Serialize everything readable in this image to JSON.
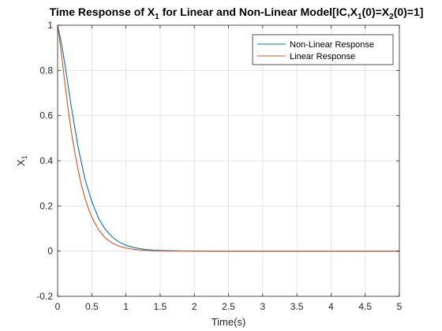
{
  "chart_data": {
    "type": "line",
    "title_parts": [
      {
        "text": "Time Response of X",
        "sub": false
      },
      {
        "text": "1",
        "sub": true
      },
      {
        "text": " for Linear and Non-Linear Model[IC,X",
        "sub": false
      },
      {
        "text": "1",
        "sub": true
      },
      {
        "text": "(0)=X",
        "sub": false
      },
      {
        "text": "2",
        "sub": true
      },
      {
        "text": "(0)=1]",
        "sub": false
      }
    ],
    "xlabel": "Time(s)",
    "ylabel_main": "X",
    "ylabel_sub": "1",
    "xlim": [
      0,
      5
    ],
    "ylim": [
      -0.2,
      1
    ],
    "xticks": [
      0,
      0.5,
      1,
      1.5,
      2,
      2.5,
      3,
      3.5,
      4,
      4.5,
      5
    ],
    "xtick_labels": [
      "0",
      "0.5",
      "1",
      "1.5",
      "2",
      "2.5",
      "3",
      "3.5",
      "4",
      "4.5",
      "5"
    ],
    "yticks": [
      -0.2,
      0,
      0.2,
      0.4,
      0.6,
      0.8,
      1
    ],
    "ytick_labels": [
      "-0.2",
      "0",
      "0.2",
      "0.4",
      "0.6",
      "0.8",
      "1"
    ],
    "grid": true,
    "legend_position": "top-right",
    "series": [
      {
        "name": "Non-Linear Response",
        "color": "#0072BD",
        "x": [
          0,
          0.05,
          0.1,
          0.15,
          0.2,
          0.25,
          0.3,
          0.35,
          0.4,
          0.45,
          0.5,
          0.6,
          0.7,
          0.8,
          0.9,
          1.0,
          1.1,
          1.2,
          1.3,
          1.4,
          1.5,
          1.6,
          1.8,
          2.0,
          2.5,
          3.0,
          3.5,
          4.0,
          4.5,
          5.0
        ],
        "y": [
          1.0,
          0.93,
          0.84,
          0.74,
          0.64,
          0.55,
          0.46,
          0.39,
          0.32,
          0.27,
          0.22,
          0.145,
          0.095,
          0.062,
          0.04,
          0.026,
          0.017,
          0.011,
          0.007,
          0.0045,
          0.003,
          0.002,
          0.001,
          0.0005,
          0.0001,
          0.0,
          0.0,
          0.0,
          0.0,
          0.0
        ]
      },
      {
        "name": "Linear Response",
        "color": "#D95319",
        "x": [
          0,
          0.05,
          0.1,
          0.15,
          0.2,
          0.25,
          0.3,
          0.35,
          0.4,
          0.45,
          0.5,
          0.6,
          0.7,
          0.8,
          0.9,
          1.0,
          1.1,
          1.2,
          1.3,
          1.4,
          1.5,
          1.6,
          1.8,
          2.0,
          2.5,
          3.0,
          3.5,
          4.0,
          4.5,
          5.0
        ],
        "y": [
          1.0,
          0.89,
          0.76,
          0.64,
          0.53,
          0.44,
          0.36,
          0.29,
          0.235,
          0.19,
          0.15,
          0.094,
          0.058,
          0.036,
          0.022,
          0.014,
          0.0085,
          0.005,
          0.003,
          0.002,
          0.0012,
          0.0007,
          0.0002,
          0.0001,
          0.0,
          0.0,
          0.0,
          0.0,
          0.0,
          0.0
        ]
      }
    ]
  }
}
